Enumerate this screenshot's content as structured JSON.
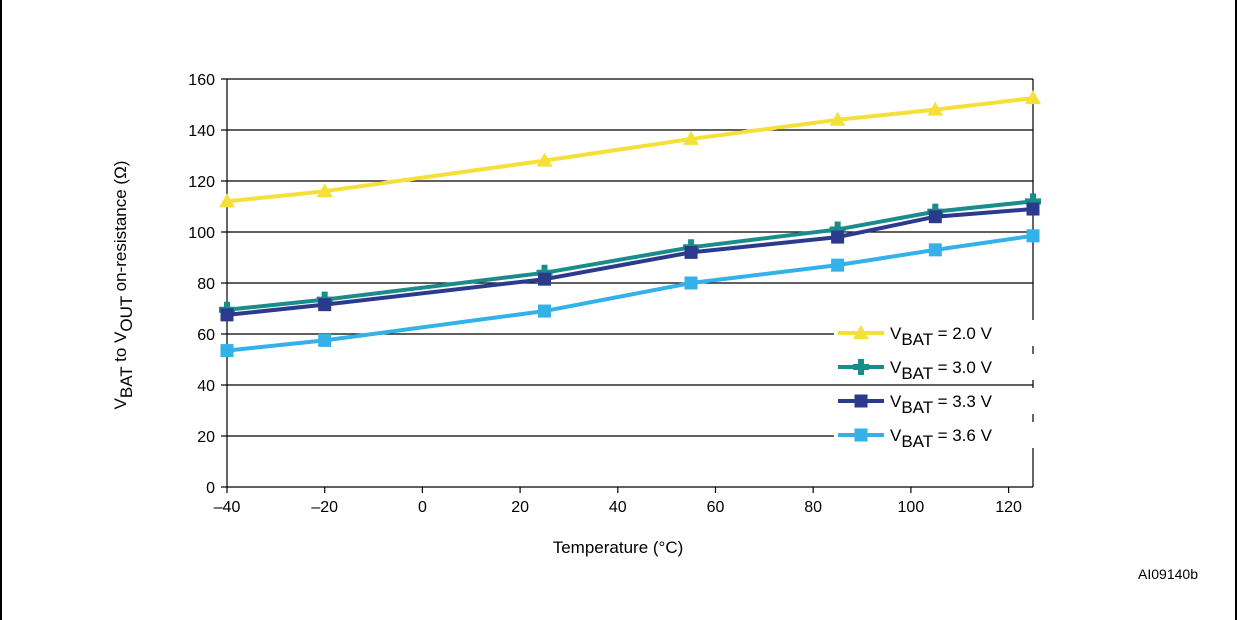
{
  "figure_id": "AI09140b",
  "chart_data": {
    "type": "line",
    "title": "",
    "xlabel": "Temperature (°C)",
    "ylabel": {
      "prefix": "V",
      "sub1": "BAT",
      "mid": " to V",
      "sub2": "OUT",
      "suffix": " on-resistance (Ω)"
    },
    "xlim": [
      -40,
      125
    ],
    "ylim": [
      0,
      160
    ],
    "x_ticks": [
      -40,
      -20,
      0,
      20,
      40,
      60,
      80,
      100,
      120
    ],
    "x_tick_labels": [
      "–40",
      "–20",
      "0",
      "20",
      "40",
      "60",
      "80",
      "100",
      "120"
    ],
    "y_ticks": [
      0,
      20,
      40,
      60,
      80,
      100,
      120,
      140,
      160
    ],
    "y_tick_labels": [
      "0",
      "20",
      "40",
      "60",
      "80",
      "100",
      "120",
      "140",
      "160"
    ],
    "grid": "horizontal",
    "legend_position": "bottom-right",
    "series": [
      {
        "name": "VBAT = 2.0 V",
        "legend": {
          "main": "V",
          "sub": "BAT",
          "rest": " = 2.0 V"
        },
        "color": "#f5e03a",
        "marker": "triangle",
        "x": [
          -40,
          -20,
          25,
          55,
          85,
          105,
          125
        ],
        "y": [
          112,
          116,
          128,
          136.5,
          144,
          148,
          152.5
        ]
      },
      {
        "name": "VBAT = 3.0 V",
        "legend": {
          "main": "V",
          "sub": "BAT",
          "rest": " = 3.0 V"
        },
        "color": "#1a8c8c",
        "marker": "plus",
        "x": [
          -40,
          -20,
          25,
          55,
          85,
          105,
          125
        ],
        "y": [
          69.5,
          73.5,
          84,
          94,
          101,
          108,
          112
        ]
      },
      {
        "name": "VBAT = 3.3 V",
        "legend": {
          "main": "V",
          "sub": "BAT",
          "rest": " = 3.3 V"
        },
        "color": "#2b3a8c",
        "marker": "square",
        "x": [
          -40,
          -20,
          25,
          55,
          85,
          105,
          125
        ],
        "y": [
          67.5,
          71.5,
          81.5,
          92,
          98,
          106,
          109
        ]
      },
      {
        "name": "VBAT = 3.6 V",
        "legend": {
          "main": "V",
          "sub": "BAT",
          "rest": " = 3.6 V"
        },
        "color": "#33b1e8",
        "marker": "square",
        "x": [
          -40,
          -20,
          25,
          55,
          85,
          105,
          125
        ],
        "y": [
          53.5,
          57.5,
          69,
          80,
          87,
          93,
          98.5
        ]
      }
    ]
  }
}
